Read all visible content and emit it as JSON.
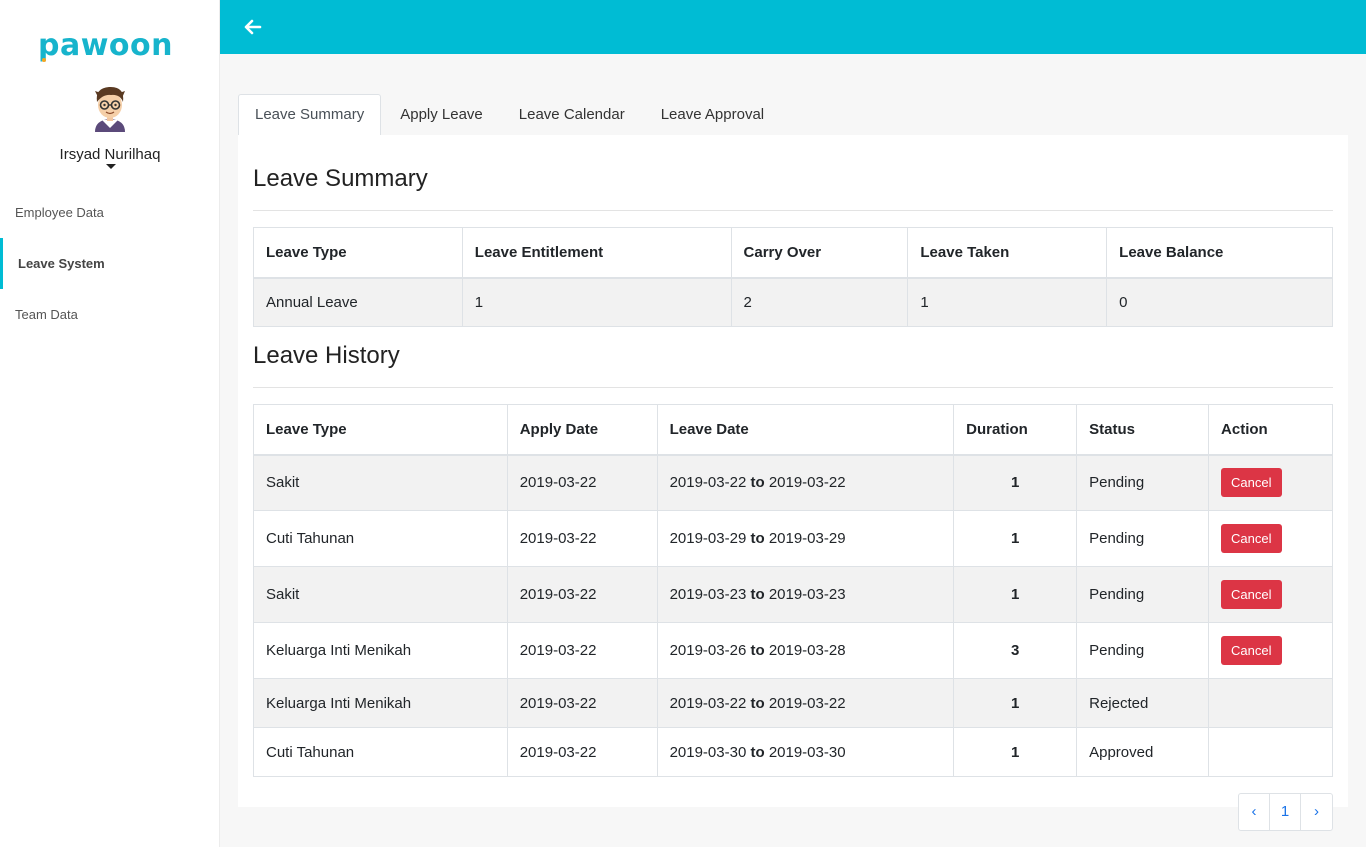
{
  "app": {
    "logo": "pawoon",
    "accent": "#00bcd4"
  },
  "user": {
    "name": "Irsyad Nurilhaq"
  },
  "sidebar": {
    "items": [
      {
        "label": "Employee Data",
        "active": false
      },
      {
        "label": "Leave System",
        "active": true
      },
      {
        "label": "Team Data",
        "active": false
      }
    ]
  },
  "tabs": [
    {
      "label": "Leave Summary",
      "active": true
    },
    {
      "label": "Apply Leave",
      "active": false
    },
    {
      "label": "Leave Calendar",
      "active": false
    },
    {
      "label": "Leave Approval",
      "active": false
    }
  ],
  "summary": {
    "title": "Leave Summary",
    "headers": [
      "Leave Type",
      "Leave Entitlement",
      "Carry Over",
      "Leave Taken",
      "Leave Balance"
    ],
    "row": [
      "Annual Leave",
      "1",
      "2",
      "1",
      "0"
    ]
  },
  "history": {
    "title": "Leave History",
    "headers": [
      "Leave Type",
      "Apply Date",
      "Leave Date",
      "Duration",
      "Status",
      "Action"
    ],
    "to_word": "to",
    "cancel_label": "Cancel",
    "rows": [
      {
        "type": "Sakit",
        "apply": "2019-03-22",
        "from": "2019-03-22",
        "to": "2019-03-22",
        "duration": "1",
        "status": "Pending"
      },
      {
        "type": "Cuti Tahunan",
        "apply": "2019-03-22",
        "from": "2019-03-29",
        "to": "2019-03-29",
        "duration": "1",
        "status": "Pending"
      },
      {
        "type": "Sakit",
        "apply": "2019-03-22",
        "from": "2019-03-23",
        "to": "2019-03-23",
        "duration": "1",
        "status": "Pending"
      },
      {
        "type": "Keluarga Inti Menikah",
        "apply": "2019-03-22",
        "from": "2019-03-26",
        "to": "2019-03-28",
        "duration": "3",
        "status": "Pending"
      },
      {
        "type": "Keluarga Inti Menikah",
        "apply": "2019-03-22",
        "from": "2019-03-22",
        "to": "2019-03-22",
        "duration": "1",
        "status": "Rejected"
      },
      {
        "type": "Cuti Tahunan",
        "apply": "2019-03-22",
        "from": "2019-03-30",
        "to": "2019-03-30",
        "duration": "1",
        "status": "Approved"
      }
    ]
  },
  "pagination": {
    "prev": "‹",
    "page": "1",
    "next": "›"
  }
}
